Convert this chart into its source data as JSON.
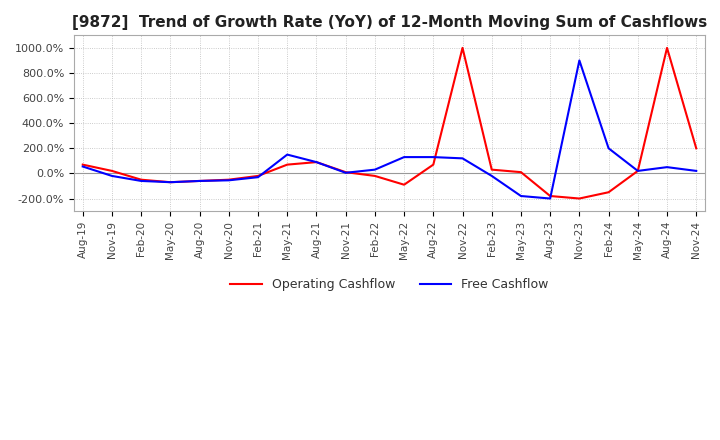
{
  "title": "[9872]  Trend of Growth Rate (YoY) of 12-Month Moving Sum of Cashflows",
  "title_fontsize": 11,
  "ylim": [
    -300,
    1100
  ],
  "yticks": [
    -200,
    0,
    200,
    400,
    600,
    800,
    1000
  ],
  "ytick_labels": [
    "-200.0%",
    "0.0%",
    "200.0%",
    "400.0%",
    "600.0%",
    "800.0%",
    "1000.0%"
  ],
  "legend_labels": [
    "Operating Cashflow",
    "Free Cashflow"
  ],
  "operating_color": "red",
  "free_color": "blue",
  "background_color": "#ffffff",
  "grid_color": "#bbbbbb",
  "dates": [
    "Aug-19",
    "Nov-19",
    "Feb-20",
    "May-20",
    "Aug-20",
    "Nov-20",
    "Feb-21",
    "May-21",
    "Aug-21",
    "Nov-21",
    "Feb-22",
    "May-22",
    "Aug-22",
    "Nov-22",
    "Feb-23",
    "May-23",
    "Aug-23",
    "Nov-23",
    "Feb-24",
    "May-24",
    "Aug-24",
    "Nov-24"
  ],
  "operating_cashflow": [
    70,
    20,
    -50,
    -70,
    -60,
    -50,
    -20,
    70,
    90,
    10,
    -20,
    -90,
    70,
    1000,
    30,
    10,
    -180,
    -200,
    -150,
    20,
    1000,
    200
  ],
  "free_cashflow": [
    55,
    -20,
    -60,
    -70,
    -60,
    -55,
    -30,
    150,
    90,
    5,
    30,
    130,
    130,
    120,
    -20,
    -180,
    -200,
    900,
    200,
    20,
    50,
    20
  ]
}
